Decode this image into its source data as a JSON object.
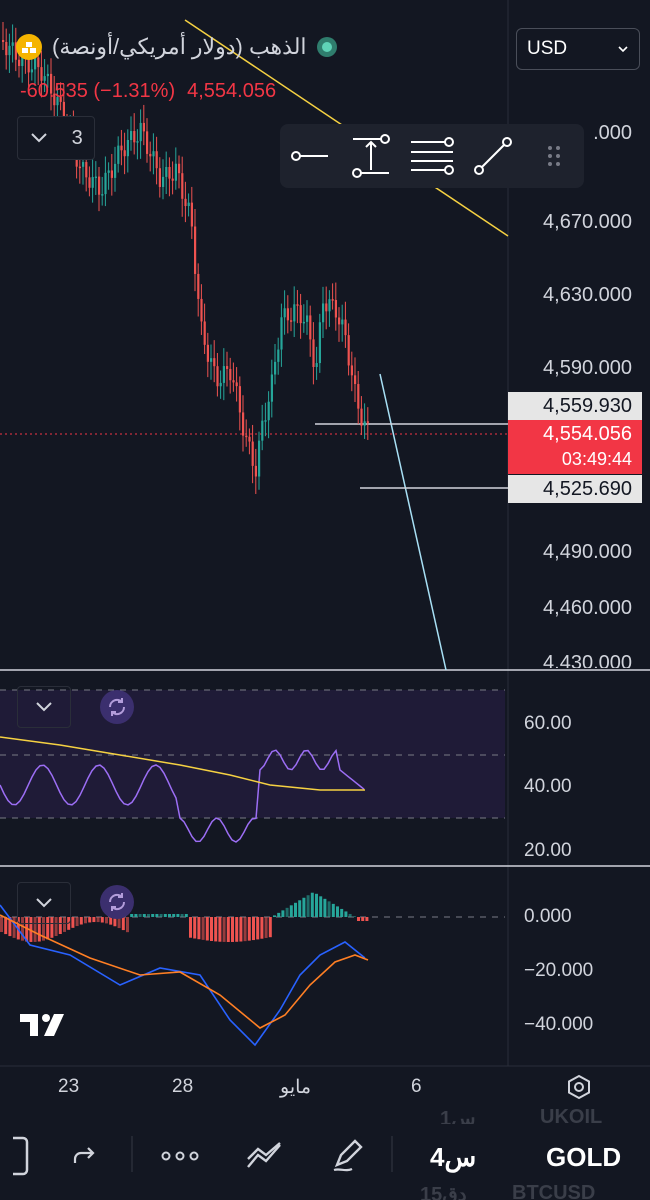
{
  "header": {
    "symbol_name": "الذهب (دولار أمريكي/أونصة)",
    "change": "-60.535 (−1.31%)",
    "last_price": "4,554.056",
    "indicator_count": "3",
    "currency": "USD"
  },
  "price_axis": {
    "ticks": [
      ".000",
      "4,670.000",
      "4,630.000",
      "4,590.000",
      "4,490.000",
      "4,460.000",
      "4,430.000"
    ],
    "upper_tag": "4,559.930",
    "current_price": "4,554.056",
    "countdown": "03:49:44",
    "lower_tag": "4,525.690"
  },
  "rsi_axis": {
    "ticks": [
      "60.00",
      "40.00",
      "20.00"
    ]
  },
  "macd_axis": {
    "ticks": [
      "0.000",
      "−20.000",
      "−40.000"
    ]
  },
  "time_axis": {
    "labels": [
      "23",
      "28",
      "مايو",
      "6"
    ]
  },
  "bottom_bar": {
    "watch_items": [
      "UKOIL",
      "GOLD",
      "BTCUSD"
    ],
    "intervals": [
      "1س",
      "4س",
      "15دق"
    ]
  },
  "colors": {
    "background": "#131722",
    "bull": "#26a69a",
    "bear": "#ef5350",
    "rsi": "#9c6ef5",
    "ma": "#f5d142",
    "macd": "#2962ff",
    "signal": "#ff7f24"
  },
  "icons": {
    "symbol": "gold-bars-icon",
    "live": "live-status-icon",
    "collapse": "chevron-down-icon",
    "tools": [
      "horizontal-ray-icon",
      "price-range-icon",
      "parallel-lines-icon",
      "trend-line-icon",
      "drag-handle-icon"
    ],
    "settings": "hexagon-settings-icon",
    "logo": "tradingview-logo-icon"
  }
}
